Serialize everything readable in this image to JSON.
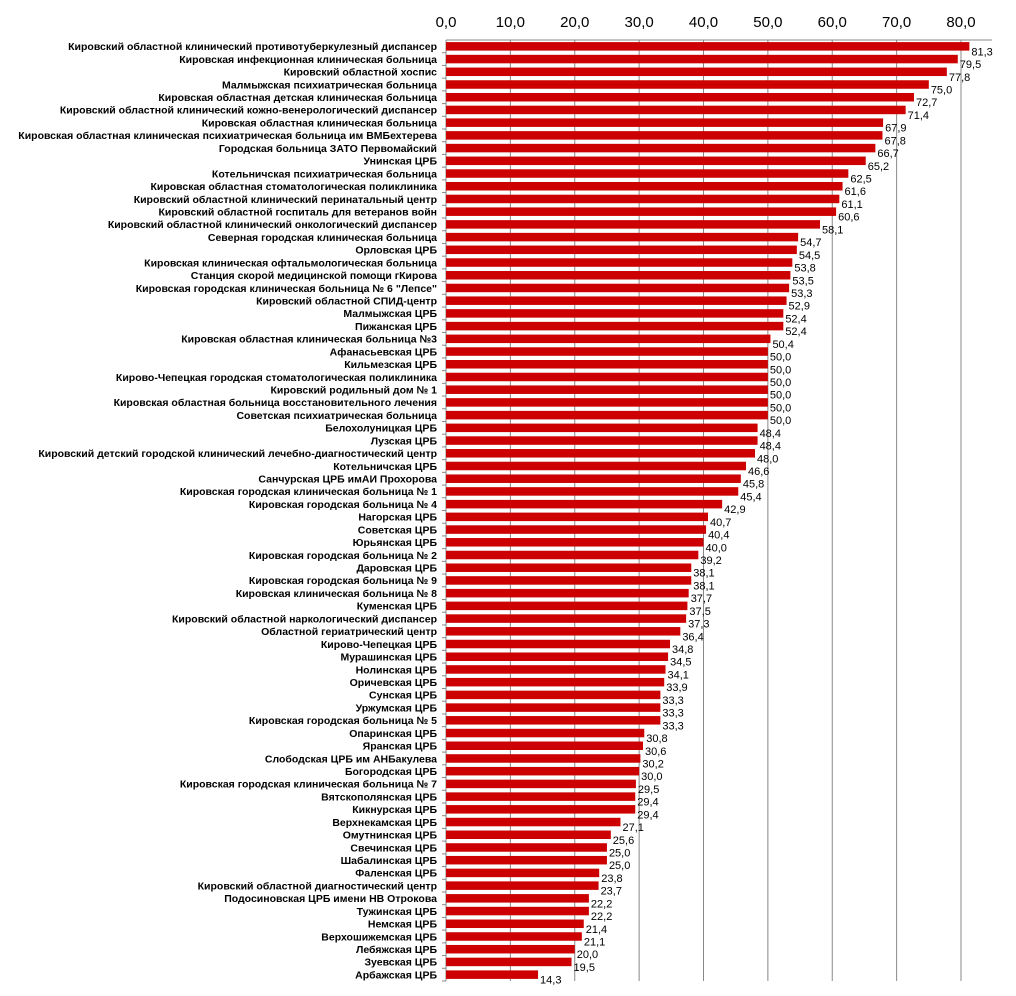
{
  "chart_data": {
    "type": "bar",
    "orientation": "horizontal",
    "title": "",
    "xlabel": "",
    "ylabel": "",
    "xlim": [
      0,
      85
    ],
    "ticks": [
      "0,0",
      "10,0",
      "20,0",
      "30,0",
      "40,0",
      "50,0",
      "60,0",
      "70,0",
      "80,0"
    ],
    "tick_values": [
      0,
      10,
      20,
      30,
      40,
      50,
      60,
      70,
      80
    ],
    "grid": "vertical",
    "bar_color": "#cc0000",
    "categories": [
      "Кировский областной клинический противотуберкулезный диспансер",
      "Кировская инфекционная клиническая больница",
      "Кировский областной хоспис",
      "Малмыжская психиатрическая больница",
      "Кировская областная детская клиническая больница",
      "Кировский областной  клинический кожно-венерологический диспансер",
      "Кировская областная клиническая больница",
      "Кировская областная клиническая психиатрическая больница им ВМБехтерева",
      "Городская  больница ЗАТО Первомайский",
      "Унинская ЦРБ",
      "Котельничская психиатрическая больница",
      "Кировская областная стоматологическая поликлиника",
      "Кировский областной  клинический перинатальный центр",
      "Кировский областной госпиталь для ветеранов войн",
      "Кировский областной клинический онкологический диспансер",
      "Северная городская клиническая больница",
      "Орловская ЦРБ",
      "Кировская клиническая офтальмологическая больница",
      "Станция скорой медицинской помощи гКирова",
      "Кировская городская клиническая больница № 6 \"Лепсе\"",
      "Кировский  областной  СПИД-центр",
      "Малмыжская ЦРБ",
      "Пижанская ЦРБ",
      "Кировская областная клиническая больница №3",
      "Афанасьевская ЦРБ",
      "Кильмезская ЦРБ",
      "Кирово-Чепецкая городская стоматологическая поликлиника",
      "Кировский родильный дом № 1",
      "Кировская областная больница восстановительного лечения",
      "Советская психиатрическая больница",
      "Белохолуницкая ЦРБ",
      "Лузская ЦРБ",
      "Кировский детский городской клинический лечебно-диагностический центр",
      "Котельничская ЦРБ",
      "Санчурская ЦРБ имАИ Прохорова",
      "Кировская городская клиническая больница № 1",
      "Кировская городская больница № 4",
      "Нагорская ЦРБ",
      "Советская ЦРБ",
      "Юрьянская ЦРБ",
      "Кировская городская больница № 2",
      "Даровская ЦРБ",
      "Кировская городская больница № 9",
      "Кировская клиническая больница № 8",
      "Куменская ЦРБ",
      "Кировский областной наркологический диспансер",
      "Областной гериатрический центр",
      "Кирово-Чепецкая ЦРБ",
      "Мурашинская ЦРБ",
      "Нолинская ЦРБ",
      "Оричевская ЦРБ",
      "Сунская ЦРБ",
      "Уржумская ЦРБ",
      "Кировская городская больница № 5",
      "Опаринская ЦРБ",
      "Яранская ЦРБ",
      "Слободская ЦРБ им АНБакулева",
      "Богородская ЦРБ",
      "Кировская городская клиническая больница № 7",
      "Вятскополянская ЦРБ",
      "Кикнурская ЦРБ",
      "Верхнекамская ЦРБ",
      "Омутнинская ЦРБ",
      "Свечинская ЦРБ",
      "Шабалинская ЦРБ",
      "Фаленская ЦРБ",
      "Кировский областной диагностический центр",
      "Подосиновская ЦРБ имени НВ Отрокова",
      "Тужинская ЦРБ",
      "Немская ЦРБ",
      "Верхошижемская ЦРБ",
      "Лебяжская ЦРБ",
      "Зуевская ЦРБ",
      "Арбажская ЦРБ"
    ],
    "values": [
      81.3,
      79.5,
      77.8,
      75.0,
      72.7,
      71.4,
      67.9,
      67.8,
      66.7,
      65.2,
      62.5,
      61.6,
      61.1,
      60.6,
      58.1,
      54.7,
      54.5,
      53.8,
      53.5,
      53.3,
      52.9,
      52.4,
      52.4,
      50.4,
      50.0,
      50.0,
      50.0,
      50.0,
      50.0,
      50.0,
      48.4,
      48.4,
      48.0,
      46.6,
      45.8,
      45.4,
      42.9,
      40.7,
      40.4,
      40.0,
      39.2,
      38.1,
      38.1,
      37.7,
      37.5,
      37.3,
      36.4,
      34.8,
      34.5,
      34.1,
      33.9,
      33.3,
      33.3,
      33.3,
      30.8,
      30.6,
      30.2,
      30.0,
      29.5,
      29.4,
      29.4,
      27.1,
      25.6,
      25.0,
      25.0,
      23.8,
      23.7,
      22.2,
      22.2,
      21.4,
      21.1,
      20.0,
      19.5,
      14.3
    ],
    "value_labels": [
      "81,3",
      "79,5",
      "77,8",
      "75,0",
      "72,7",
      "71,4",
      "67,9",
      "67,8",
      "66,7",
      "65,2",
      "62,5",
      "61,6",
      "61,1",
      "60,6",
      "58,1",
      "54,7",
      "54,5",
      "53,8",
      "53,5",
      "53,3",
      "52,9",
      "52,4",
      "52,4",
      "50,4",
      "50,0",
      "50,0",
      "50,0",
      "50,0",
      "50,0",
      "50,0",
      "48,4",
      "48,4",
      "48,0",
      "46,6",
      "45,8",
      "45,4",
      "42,9",
      "40,7",
      "40,4",
      "40,0",
      "39,2",
      "38,1",
      "38,1",
      "37,7",
      "37,5",
      "37,3",
      "36,4",
      "34,8",
      "34,5",
      "34,1",
      "33,9",
      "33,3",
      "33,3",
      "33,3",
      "30,8",
      "30,6",
      "30,2",
      "30,0",
      "29,5",
      "29,4",
      "29,4",
      "27,1",
      "25,6",
      "25,0",
      "25,0",
      "23,8",
      "23,7",
      "22,2",
      "22,2",
      "21,4",
      "21,1",
      "20,0",
      "19,5",
      "14,3"
    ]
  }
}
